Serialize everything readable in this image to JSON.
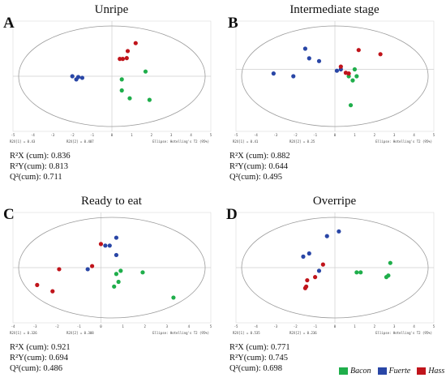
{
  "legend": [
    {
      "label": "Bacon",
      "color": "#1fae4b"
    },
    {
      "label": "Fuerte",
      "color": "#2946a6"
    },
    {
      "label": "Hass",
      "color": "#c0141b"
    }
  ],
  "chart_data": [
    {
      "type": "scatter",
      "panel": "A",
      "title": "Unripe",
      "xlim": [
        -5,
        5
      ],
      "ylim": [
        -3.5,
        3.5
      ],
      "x_ticks": [
        "-5",
        "-4",
        "-3",
        "-2",
        "-1",
        "0",
        "1",
        "2",
        "3",
        "4",
        "5"
      ],
      "footer": {
        "r2x": "R2X[1] = 0.43",
        "r2x2": "R2X[2] = 0.407",
        "ellipse": "Ellipse: Hotelling's T2 (95%)"
      },
      "stats": {
        "r2x": "R²X (cum): 0.836",
        "r2y": "R²Y(cum): 0.813",
        "q2": "Q²(cum): 0.711"
      },
      "series": [
        {
          "name": "Bacon",
          "points": [
            [
              0.5,
              -0.2
            ],
            [
              0.5,
              -0.9
            ],
            [
              0.9,
              -1.4
            ],
            [
              1.7,
              0.3
            ],
            [
              1.9,
              -1.5
            ]
          ]
        },
        {
          "name": "Fuerte",
          "points": [
            [
              -2.0,
              0.0
            ],
            [
              -1.8,
              -0.2
            ],
            [
              -1.7,
              -0.05
            ],
            [
              -1.5,
              -0.1
            ]
          ]
        },
        {
          "name": "Hass",
          "points": [
            [
              0.4,
              1.1
            ],
            [
              0.55,
              1.1
            ],
            [
              0.75,
              1.15
            ],
            [
              0.8,
              1.6
            ],
            [
              1.2,
              2.1
            ]
          ]
        }
      ]
    },
    {
      "type": "scatter",
      "panel": "B",
      "title": "Intermediate stage",
      "xlim": [
        -5,
        5
      ],
      "ylim": [
        -4.5,
        3.5
      ],
      "x_ticks": [
        "-5",
        "-4",
        "-3",
        "-2",
        "-1",
        "0",
        "1",
        "2",
        "3",
        "4",
        "5"
      ],
      "footer": {
        "r2x": "R2X[1] = 0.41",
        "r2x2": "R2X[2] = 0.25",
        "ellipse": "Ellipse: Hotelling's T2 (95%)"
      },
      "stats": {
        "r2x": "R²X (cum): 0.882",
        "r2y": "R²Y(cum): 0.644",
        "q2": "Q²(cum): 0.495"
      },
      "series": [
        {
          "name": "Bacon",
          "points": [
            [
              0.7,
              -0.5
            ],
            [
              0.9,
              -0.8
            ],
            [
              1.0,
              0.0
            ],
            [
              1.1,
              -0.5
            ],
            [
              0.8,
              -2.6
            ]
          ]
        },
        {
          "name": "Fuerte",
          "points": [
            [
              -3.1,
              -0.3
            ],
            [
              -2.1,
              -0.5
            ],
            [
              -1.5,
              1.5
            ],
            [
              -1.3,
              0.8
            ],
            [
              -0.8,
              0.6
            ],
            [
              0.1,
              -0.1
            ],
            [
              0.3,
              0.0
            ]
          ]
        },
        {
          "name": "Hass",
          "points": [
            [
              0.3,
              0.2
            ],
            [
              0.55,
              -0.25
            ],
            [
              0.7,
              -0.3
            ],
            [
              1.2,
              1.4
            ],
            [
              2.3,
              1.1
            ]
          ]
        }
      ]
    },
    {
      "type": "scatter",
      "panel": "C",
      "title": "Ready to eat",
      "xlim": [
        -4,
        5
      ],
      "ylim": [
        -3.5,
        3.5
      ],
      "x_ticks": [
        "-4",
        "-3",
        "-2",
        "-1",
        "0",
        "1",
        "2",
        "3",
        "4",
        "5"
      ],
      "footer": {
        "r2x": "R2X[1] = 0.326",
        "r2x2": "R2X[2] = 0.308",
        "ellipse": "Ellipse: Hotelling's T2 (95%)"
      },
      "stats": {
        "r2x": "R²X (cum): 0.921",
        "r2y": "R²Y(cum): 0.694",
        "q2": "Q²(cum): 0.486"
      },
      "series": [
        {
          "name": "Bacon",
          "points": [
            [
              0.7,
              -0.4
            ],
            [
              0.8,
              -0.9
            ],
            [
              0.9,
              -0.2
            ],
            [
              0.6,
              -1.2
            ],
            [
              1.9,
              -0.3
            ],
            [
              3.3,
              -1.9
            ]
          ]
        },
        {
          "name": "Fuerte",
          "points": [
            [
              -0.6,
              -0.1
            ],
            [
              0.2,
              1.4
            ],
            [
              0.4,
              1.4
            ],
            [
              0.7,
              0.8
            ],
            [
              0.7,
              1.9
            ]
          ]
        },
        {
          "name": "Hass",
          "points": [
            [
              -2.9,
              -1.1
            ],
            [
              -2.2,
              -1.5
            ],
            [
              -1.9,
              -0.1
            ],
            [
              -0.4,
              0.1
            ],
            [
              0.0,
              1.5
            ]
          ]
        }
      ]
    },
    {
      "type": "scatter",
      "panel": "D",
      "title": "Overripe",
      "xlim": [
        -5,
        5
      ],
      "ylim": [
        -3.5,
        3.5
      ],
      "x_ticks": [
        "-5",
        "-4",
        "-3",
        "-2",
        "-1",
        "0",
        "1",
        "2",
        "3",
        "4",
        "5"
      ],
      "footer": {
        "r2x": "R2X[1] = 0.535",
        "r2x2": "R2X[2] = 0.236",
        "ellipse": "Ellipse: Hotelling's T2 (95%)"
      },
      "stats": {
        "r2x": "R²X (cum): 0.771",
        "r2y": "R²Y(cum): 0.745",
        "q2": "Q²(cum): 0.698"
      },
      "series": [
        {
          "name": "Bacon",
          "points": [
            [
              1.1,
              -0.3
            ],
            [
              1.3,
              -0.3
            ],
            [
              2.6,
              -0.6
            ],
            [
              2.7,
              -0.5
            ],
            [
              2.8,
              0.3
            ]
          ]
        },
        {
          "name": "Fuerte",
          "points": [
            [
              -1.6,
              0.7
            ],
            [
              -1.3,
              0.9
            ],
            [
              -0.8,
              -0.2
            ],
            [
              -0.4,
              2.0
            ],
            [
              0.2,
              2.3
            ]
          ]
        },
        {
          "name": "Hass",
          "points": [
            [
              -1.5,
              -1.3
            ],
            [
              -1.45,
              -1.2
            ],
            [
              -1.4,
              -0.8
            ],
            [
              -1.0,
              -0.6
            ],
            [
              -0.6,
              0.2
            ]
          ]
        }
      ]
    }
  ]
}
